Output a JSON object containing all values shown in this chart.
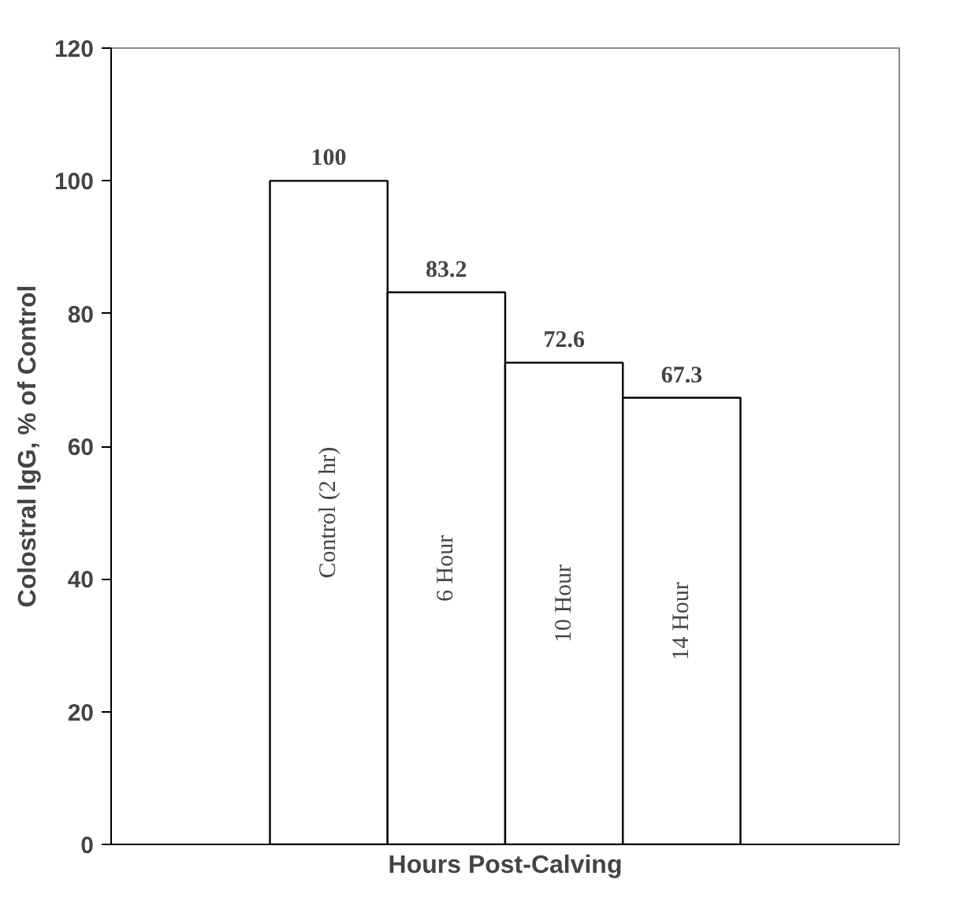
{
  "chart_data": {
    "type": "bar",
    "xlabel": "Hours Post-Calving",
    "ylabel": "Colostral IgG, % of Control",
    "categories": [
      "Control (2 hr)",
      "6 Hour",
      "10 Hour",
      "14 Hour"
    ],
    "values": [
      100,
      83.2,
      72.6,
      67.3
    ],
    "color": "#ffffff",
    "ylim": [
      0,
      120
    ],
    "yticks": [
      0,
      20,
      40,
      60,
      80,
      100,
      120
    ],
    "grid": false,
    "data_labels": true
  }
}
